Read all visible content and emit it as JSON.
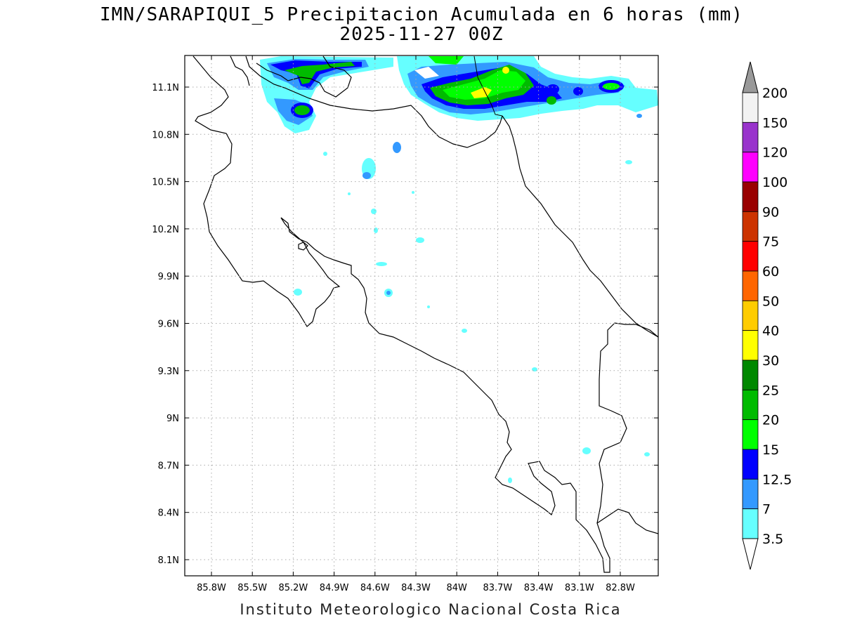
{
  "header": {
    "title_line1": "IMN/SARAPIQUI_5 Precipitacion Acumulada en 6 horas (mm)",
    "title_line2": "2025-11-27 00Z"
  },
  "footer": {
    "credit": "Instituto Meteorologico Nacional Costa Rica"
  },
  "map": {
    "lon_range": [
      -86.03,
      -82.55
    ],
    "lat_range": [
      8.0,
      11.3
    ],
    "x_ticks": [
      "85.8W",
      "85.5W",
      "85.2W",
      "84.9W",
      "84.6W",
      "84.3W",
      "84W",
      "83.7W",
      "83.4W",
      "83.1W",
      "82.8W"
    ],
    "y_ticks": [
      "11.1N",
      "10.8N",
      "10.5N",
      "10.2N",
      "9.9N",
      "9.6N",
      "9.3N",
      "9N",
      "8.7N",
      "8.4N",
      "8.1N"
    ],
    "grid": "dotted"
  },
  "legend": {
    "levels": [
      "200",
      "150",
      "120",
      "100",
      "90",
      "75",
      "60",
      "50",
      "40",
      "30",
      "25",
      "20",
      "15",
      "12.5",
      "7",
      "3.5"
    ],
    "colors": [
      "#f2f2f2",
      "#9933cc",
      "#ff00ff",
      "#990000",
      "#cc3300",
      "#ff0000",
      "#ff6600",
      "#ffcc00",
      "#ffff00",
      "#008800",
      "#00bb00",
      "#00ff00",
      "#0000ff",
      "#3399ff",
      "#66ffff"
    ],
    "over_color": "#999999",
    "under_color": "#ffffff"
  }
}
